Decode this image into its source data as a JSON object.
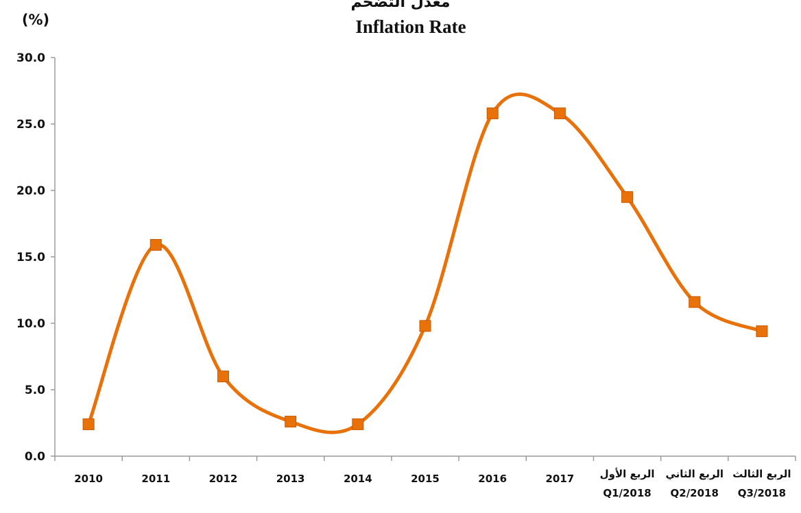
{
  "chart_data": {
    "type": "line",
    "title_ar": "معدل التضخم",
    "title": "Inflation Rate",
    "ylabel": "(%)",
    "xlabel": "",
    "categories": [
      "2010",
      "2011",
      "2012",
      "2013",
      "2014",
      "2015",
      "2016",
      "2017",
      "الربع الأول\nQ1/2018",
      "الربع الثاني\nQ2/2018",
      "الربع الثالث\nQ3/2018"
    ],
    "series": [
      {
        "values": [
          2.4,
          15.9,
          6.0,
          2.6,
          2.4,
          9.8,
          25.8,
          25.8,
          19.5,
          11.6,
          9.4
        ],
        "color": "#E8710A",
        "smooth": true,
        "marker": "square"
      }
    ],
    "ylim": [
      0,
      30
    ],
    "yticks": [
      "0.0",
      "5.0",
      "10.0",
      "15.0",
      "20.0",
      "25.0",
      "30.0"
    ],
    "grid": false,
    "legend": "none"
  }
}
